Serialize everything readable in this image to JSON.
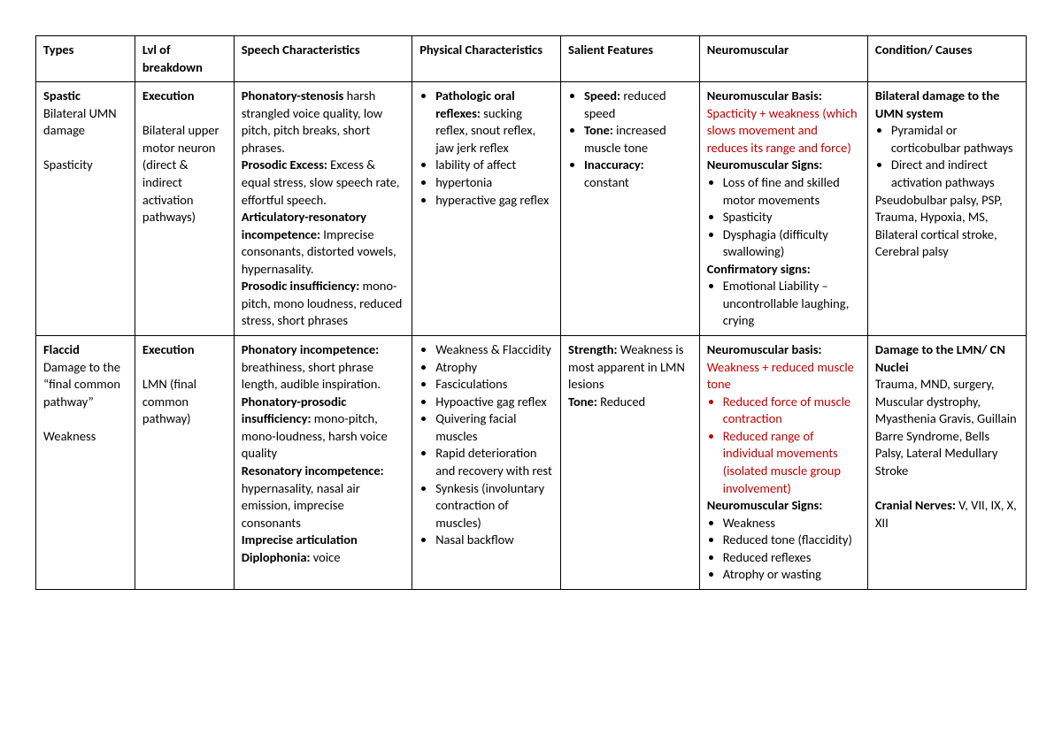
{
  "colors": {
    "text": "#000000",
    "highlight": "#c00000",
    "border": "#000000",
    "background": "#ffffff"
  },
  "typography": {
    "font_family": "Calibri",
    "font_size_pt": 11,
    "line_height": 1.35,
    "bold_weight": 700
  },
  "table": {
    "columns": [
      {
        "key": "types",
        "label": "Types",
        "width_pct": 10
      },
      {
        "key": "lvl",
        "label": "Lvl of breakdown",
        "width_pct": 10
      },
      {
        "key": "speech",
        "label": "Speech Characteristics",
        "width_pct": 18
      },
      {
        "key": "physical",
        "label": "Physical Characteristics",
        "width_pct": 15
      },
      {
        "key": "salient",
        "label": "Salient Features",
        "width_pct": 14
      },
      {
        "key": "neuro",
        "label": "Neuromuscular",
        "width_pct": 17
      },
      {
        "key": "cond",
        "label": "Condition/ Causes",
        "width_pct": 16
      }
    ],
    "header": {
      "types": "Types",
      "lvl": "Lvl of breakdown",
      "speech": "Speech Characteristics",
      "physical": "Physical Characteristics",
      "salient": "Salient Features",
      "neuro": "Neuromuscular",
      "cond": "Condition/ Causes"
    },
    "rows": [
      {
        "types": {
          "line1_bold": "Spastic",
          "line2": "Bilateral UMN damage",
          "line3": "Spasticity"
        },
        "lvl": {
          "line1_bold": "Execution",
          "line2": "Bilateral upper motor neuron (direct & indirect activation pathways)"
        },
        "speech": {
          "seg1_bold": "Phonatory-stenosis",
          "seg1_text": "harsh strangled voice quality, low pitch, pitch breaks, short phrases.",
          "seg2_bold": "Prosodic Excess:",
          "seg2_text": "Excess & equal stress, slow speech rate, effortful speech.",
          "seg3_bold": "Articulatory-resonatory incompetence:",
          "seg3_text": "Imprecise consonants, distorted vowels, hypernasality.",
          "seg4_bold": "Prosodic insufficiency:",
          "seg4_text": "mono-pitch, mono loudness, reduced stress, short phrases"
        },
        "physical": {
          "b1_bold": "Pathologic oral reflexes:",
          "b1_text": "sucking reflex, snout reflex, jaw jerk reflex",
          "b2": "lability of affect",
          "b3": "hypertonia",
          "b4": "hyperactive gag reflex"
        },
        "salient": {
          "b1_bold": "Speed:",
          "b1_text": "reduced speed",
          "b2_bold": "Tone:",
          "b2_text": "increased muscle tone",
          "b3_bold": "Inaccuracy:",
          "b3_text": "constant"
        },
        "neuro": {
          "basis_label": "Neuromuscular Basis:",
          "basis_red": "Spacticity + weakness (which slows movement and reduces its range and force)",
          "signs_label": "Neuromuscular Signs:",
          "s1": "Loss of fine and skilled motor movements",
          "s2": "Spasticity",
          "s3": "Dysphagia (difficulty swallowing)",
          "confirm_label": "Confirmatory signs:",
          "c1": "Emotional Liability – uncontrollable laughing, crying"
        },
        "cond": {
          "lead_bold": "Bilateral damage to the UMN system",
          "b1": "Pyramidal or corticobulbar pathways",
          "b2": "Direct and indirect activation pathways",
          "tail": "Pseudobulbar palsy, PSP, Trauma, Hypoxia, MS, Bilateral cortical stroke, Cerebral palsy"
        }
      },
      {
        "types": {
          "line1_bold": "Flaccid",
          "line2": "Damage to the “final common pathway”",
          "line3": "Weakness"
        },
        "lvl": {
          "line1_bold": "Execution",
          "line2": "LMN (final common pathway)"
        },
        "speech": {
          "seg1_bold": "Phonatory incompetence:",
          "seg1_text": "breathiness, short phrase length, audible inspiration.",
          "seg2_bold": "Phonatory-prosodic insufficiency:",
          "seg2_text": "mono-pitch, mono-loudness, harsh voice quality",
          "seg3_bold": "Resonatory incompetence:",
          "seg3_text": "hypernasality, nasal air emission, imprecise consonants",
          "seg4_bold": "Imprecise articulation",
          "seg5_bold": "Diplophonia:",
          "seg5_text": "voice"
        },
        "physical": {
          "b1": "Weakness & Flaccidity",
          "b2": "Atrophy",
          "b3": "Fasciculations",
          "b4": "Hypoactive gag reflex",
          "b5": "Quivering facial muscles",
          "b6": "Rapid deterioration and recovery with rest",
          "b7": "Synkesis (involuntary contraction of muscles)",
          "b8": "Nasal backflow"
        },
        "salient": {
          "b1_bold": "Strength:",
          "b1_text": "Weakness is most apparent in LMN lesions",
          "b2_bold": "Tone:",
          "b2_text": "Reduced"
        },
        "neuro": {
          "basis_label": "Neuromuscular basis:",
          "basis_red": "Weakness + reduced muscle tone",
          "r1": "Reduced force of muscle contraction",
          "r2": "Reduced range of individual movements (isolated muscle group involvement)",
          "signs_label": "Neuromuscular Signs:",
          "s1": "Weakness",
          "s2": "Reduced tone (flaccidity)",
          "s3": "Reduced reflexes",
          "s4": "Atrophy or wasting"
        },
        "cond": {
          "lead_bold": "Damage to the LMN/ CN Nuclei",
          "body": "Trauma, MND, surgery, Muscular dystrophy, Myasthenia Gravis, Guillain Barre Syndrome, Bells Palsy, Lateral Medullary Stroke",
          "cn_bold": "Cranial Nerves:",
          "cn_text": "V, VII, IX, X, XII"
        }
      }
    ]
  }
}
